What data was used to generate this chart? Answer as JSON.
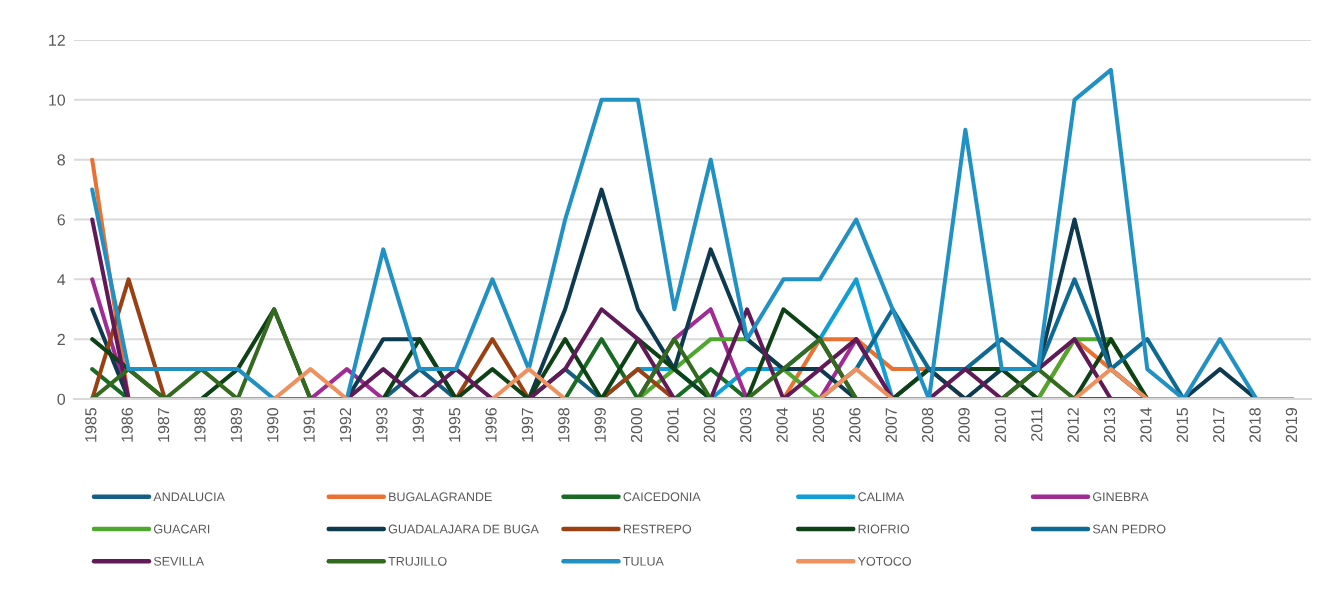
{
  "chart_data": {
    "type": "line",
    "categories": [
      "1985",
      "1986",
      "1987",
      "1988",
      "1989",
      "1990",
      "1991",
      "1992",
      "1993",
      "1994",
      "1995",
      "1996",
      "1997",
      "1998",
      "1999",
      "2000",
      "2001",
      "2002",
      "2003",
      "2004",
      "2005",
      "2006",
      "2007",
      "2008",
      "2009",
      "2010",
      "2011",
      "2012",
      "2013",
      "2014",
      "2015",
      "2017",
      "2018",
      "2019"
    ],
    "series": [
      {
        "name": "ANDALUCIA",
        "color": "#156082",
        "values": [
          null,
          null,
          null,
          null,
          null,
          null,
          null,
          null,
          0,
          1,
          0,
          null,
          0,
          1,
          0,
          null,
          null,
          null,
          null,
          null,
          null,
          null,
          null,
          null,
          null,
          null,
          null,
          null,
          null,
          null,
          null,
          null,
          null,
          null
        ]
      },
      {
        "name": "BUGALAGRANDE",
        "color": "#e97132",
        "values": [
          8,
          0,
          null,
          null,
          null,
          null,
          null,
          null,
          null,
          null,
          null,
          null,
          null,
          null,
          null,
          null,
          null,
          null,
          null,
          0,
          2,
          2,
          1,
          1,
          0,
          null,
          0,
          2,
          1,
          0,
          null,
          null,
          null,
          null
        ]
      },
      {
        "name": "CAICEDONIA",
        "color": "#196b24",
        "values": [
          1,
          0,
          null,
          null,
          null,
          null,
          null,
          null,
          null,
          null,
          null,
          null,
          null,
          0,
          2,
          0,
          0,
          1,
          0,
          null,
          null,
          null,
          null,
          null,
          null,
          null,
          null,
          null,
          null,
          null,
          null,
          null,
          null,
          null
        ]
      },
      {
        "name": "CALIMA",
        "color": "#0f9ed5",
        "values": [
          null,
          null,
          null,
          null,
          null,
          null,
          null,
          null,
          null,
          null,
          null,
          null,
          null,
          null,
          0,
          1,
          1,
          0,
          1,
          1,
          2,
          4,
          0,
          null,
          null,
          null,
          null,
          null,
          null,
          null,
          null,
          null,
          null,
          null
        ]
      },
      {
        "name": "GINEBRA",
        "color": "#a02b93",
        "values": [
          4,
          0,
          null,
          null,
          null,
          null,
          0,
          1,
          0,
          null,
          null,
          null,
          null,
          null,
          null,
          0,
          2,
          3,
          0,
          null,
          0,
          2,
          0,
          null,
          null,
          null,
          null,
          null,
          null,
          null,
          null,
          null,
          null,
          null
        ]
      },
      {
        "name": "GUACARI",
        "color": "#4ea72e",
        "values": [
          null,
          null,
          null,
          null,
          null,
          null,
          null,
          null,
          null,
          null,
          null,
          null,
          null,
          null,
          null,
          0,
          1,
          2,
          2,
          1,
          0,
          null,
          null,
          null,
          null,
          null,
          0,
          2,
          2,
          0,
          null,
          null,
          null,
          null
        ]
      },
      {
        "name": "GUADALAJARA DE BUGA",
        "color": "#0e3a50",
        "values": [
          3,
          0,
          null,
          null,
          null,
          null,
          null,
          0,
          2,
          2,
          0,
          null,
          0,
          3,
          7,
          3,
          1,
          5,
          2,
          1,
          1,
          0,
          0,
          1,
          0,
          1,
          1,
          6,
          1,
          0,
          0,
          1,
          0,
          null
        ]
      },
      {
        "name": "RESTREPO",
        "color": "#9a4013",
        "values": [
          0,
          4,
          0,
          null,
          null,
          null,
          null,
          null,
          null,
          null,
          0,
          2,
          0,
          null,
          0,
          1,
          0,
          null,
          null,
          null,
          0,
          0,
          null,
          null,
          null,
          null,
          null,
          null,
          null,
          null,
          null,
          null,
          null,
          null
        ]
      },
      {
        "name": "RIOFRIO",
        "color": "#0f4116",
        "values": [
          2,
          1,
          0,
          0,
          1,
          3,
          0,
          null,
          0,
          2,
          0,
          1,
          0,
          2,
          0,
          2,
          1,
          0,
          0,
          3,
          2,
          0,
          0,
          1,
          1,
          1,
          0,
          0,
          2,
          0,
          null,
          null,
          null,
          null
        ]
      },
      {
        "name": "SAN PEDRO",
        "color": "#0e6a92",
        "values": [
          null,
          null,
          null,
          null,
          null,
          null,
          null,
          null,
          null,
          null,
          null,
          null,
          null,
          null,
          null,
          null,
          null,
          null,
          null,
          null,
          0,
          1,
          3,
          1,
          1,
          2,
          1,
          4,
          1,
          2,
          0,
          null,
          null,
          null
        ]
      },
      {
        "name": "SEVILLA",
        "color": "#601a58",
        "values": [
          6,
          0,
          null,
          null,
          null,
          null,
          null,
          0,
          1,
          0,
          1,
          0,
          0,
          1,
          3,
          2,
          0,
          0,
          3,
          0,
          1,
          2,
          0,
          0,
          1,
          0,
          1,
          2,
          0,
          null,
          null,
          null,
          null,
          null
        ]
      },
      {
        "name": "TRUJILLO",
        "color": "#336a1f",
        "values": [
          0,
          1,
          0,
          1,
          0,
          3,
          0,
          null,
          null,
          null,
          null,
          0,
          0,
          0,
          null,
          0,
          2,
          0,
          0,
          1,
          2,
          0,
          0,
          null,
          null,
          0,
          1,
          0,
          0,
          0,
          null,
          null,
          null,
          null
        ]
      },
      {
        "name": "TULUA",
        "color": "#2191c4",
        "values": [
          7,
          1,
          1,
          1,
          1,
          0,
          0,
          0,
          5,
          1,
          1,
          4,
          1,
          6,
          10,
          10,
          3,
          8,
          2,
          4,
          4,
          6,
          3,
          0,
          9,
          1,
          1,
          10,
          11,
          1,
          0,
          2,
          0,
          null
        ]
      },
      {
        "name": "YOTOCO",
        "color": "#ee915f",
        "values": [
          0,
          0,
          0,
          0,
          0,
          0,
          1,
          0,
          0,
          0,
          0,
          0,
          1,
          0,
          0,
          0,
          0,
          0,
          0,
          0,
          0,
          1,
          0,
          0,
          0,
          0,
          0,
          0,
          1,
          0,
          0,
          0,
          0,
          0
        ]
      }
    ],
    "ylim": [
      0,
      12
    ],
    "yticks": [
      0,
      2,
      4,
      6,
      8,
      10,
      12
    ],
    "grid": "y",
    "legend": "bottom"
  }
}
